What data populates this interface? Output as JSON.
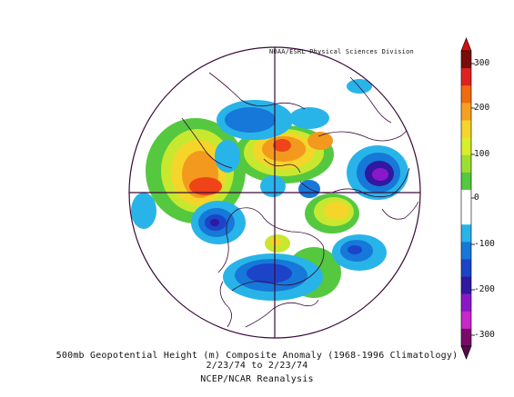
{
  "credit": "NOAA/ESRL Physical Sciences Division",
  "caption": {
    "line1": "500mb Geopotential Height (m) Composite Anomaly (1968-1996 Climatology)",
    "line2": "2/23/74  to 2/23/74",
    "line3": "NCEP/NCAR Reanalysis"
  },
  "colorbar": {
    "ticks": [
      "300",
      "200",
      "100",
      "0",
      "-100",
      "-200",
      "-300"
    ],
    "colors": [
      "#7a0c0c",
      "#e02020",
      "#f06a10",
      "#f5a020",
      "#f5d52a",
      "#d8ee2a",
      "#9ede30",
      "#55c840",
      "#ffffff",
      "#ffffff",
      "#28b4e8",
      "#1678d8",
      "#1c44c8",
      "#3018a0",
      "#8a18c8",
      "#c828c8",
      "#7a0a6a"
    ]
  },
  "map": {
    "projection": "north polar stereographic",
    "anomaly_palette": {
      "pos_300": "#c81818",
      "pos_250": "#ee4418",
      "pos_200": "#f39a1e",
      "pos_150": "#f5d52a",
      "pos_100": "#c8e830",
      "pos_50": "#55c840",
      "neg_50": "#28b4e8",
      "neg_100": "#1678d8",
      "neg_150": "#1c44c8",
      "neg_200": "#3018a0",
      "neg_250": "#8a18c8"
    }
  }
}
